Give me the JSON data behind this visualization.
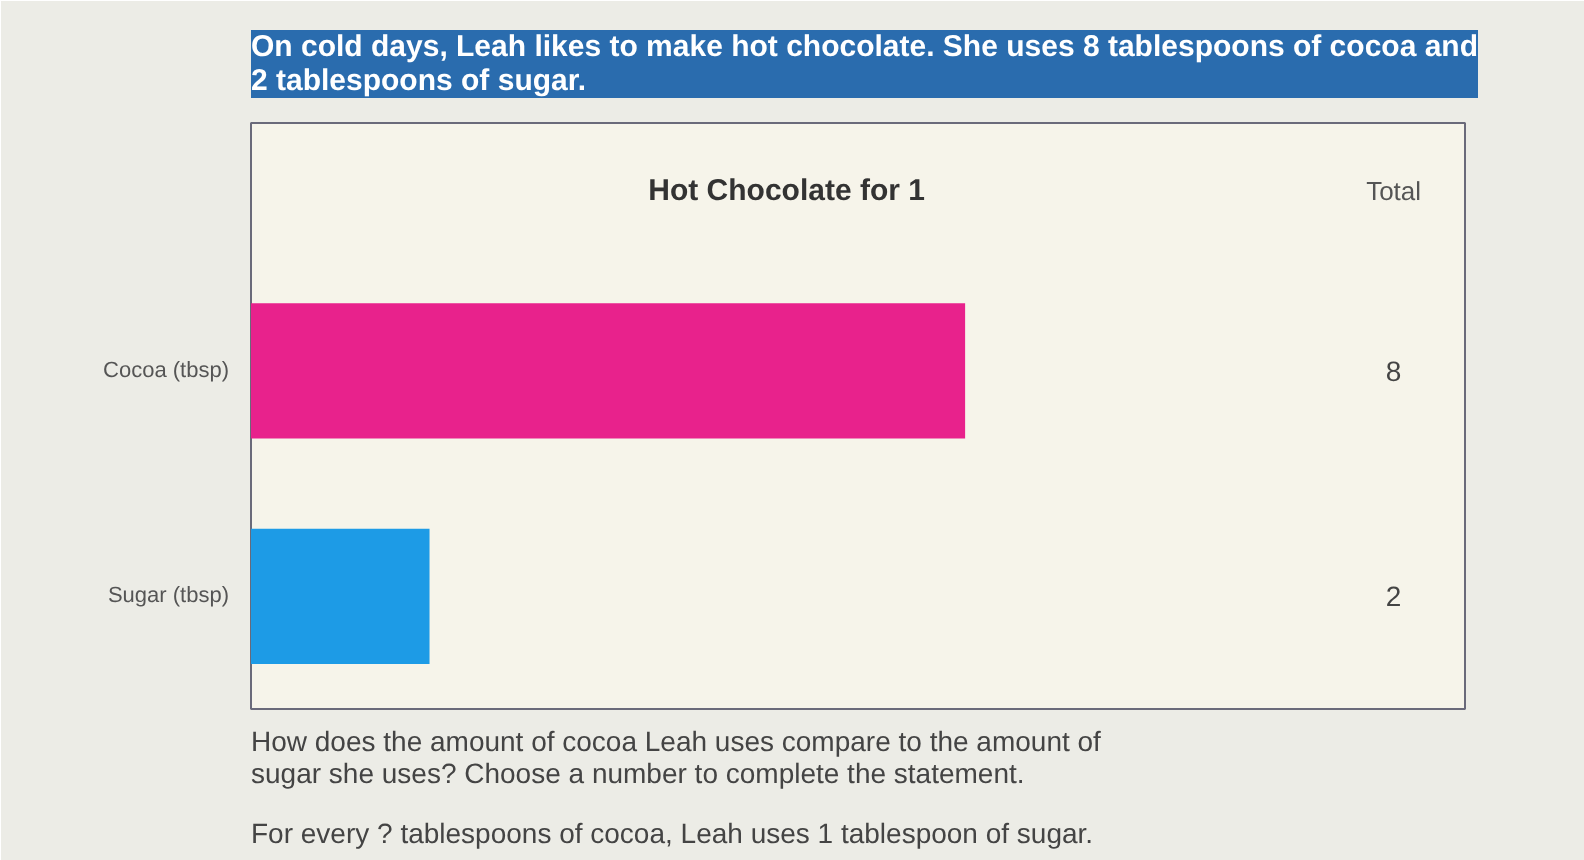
{
  "chart_data": {
    "type": "bar",
    "orientation": "horizontal",
    "title": "On cold days, Leah likes to make hot chocolate. She uses 8 tablespoons of cocoa and\n2 tablespoons of sugar.",
    "subtitle": "Hot Chocolate for 1",
    "categories": [
      "Cocoa (tbsp)",
      "Sugar (tbsp)"
    ],
    "values": [
      8,
      2
    ],
    "colors": [
      "#e8228c",
      "#1d9be6"
    ],
    "value_labels": [
      "8",
      "2"
    ],
    "legend_title": "Total",
    "tick_labels": "y",
    "annotations": [
      "How does the amount of cocoa Leah uses compare to the amount of\nsugar she uses? Choose a number to complete the statement.",
      "For every  ?  tablespoons of cocoa, Leah uses 1 tablespoon of sugar."
    ]
  }
}
